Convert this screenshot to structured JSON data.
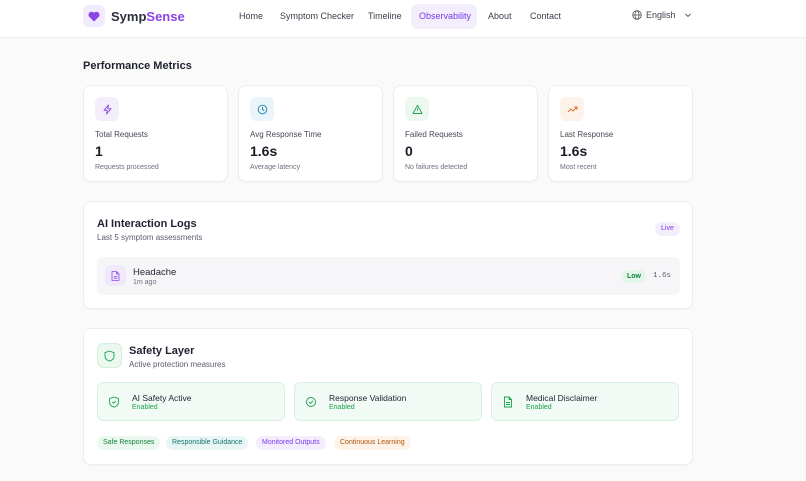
{
  "nav": {
    "brand_left": "Symp",
    "brand_right": "Sense",
    "links": [
      "Home",
      "Symptom Checker",
      "Timeline",
      "Observability",
      "About",
      "Contact"
    ],
    "language": "English"
  },
  "metrics": {
    "title": "Performance Metrics",
    "cards": [
      {
        "label": "Total Requests",
        "value": 1,
        "note": "Requests processed"
      },
      {
        "label": "Avg Response Time",
        "value": "1.6s",
        "note": "Average latency"
      },
      {
        "label": "Failed Requests",
        "value": 0,
        "note": "No failures detected"
      },
      {
        "label": "Last Response",
        "value": "1.6s",
        "note": "Most recent"
      }
    ]
  },
  "logs": {
    "title": "AI Interaction Logs",
    "subtitle": "Last 5 symptom assessments",
    "badge": "Live",
    "entries": [
      {
        "name": "Headache",
        "time": "1m ago",
        "level": "Low",
        "duration": "1.6s"
      }
    ]
  },
  "safety": {
    "title": "Safety Layer",
    "subtitle": "Active protection measures",
    "items": [
      {
        "name": "AI Safety Active",
        "status": "Enabled"
      },
      {
        "name": "Response Validation",
        "status": "Enabled"
      },
      {
        "name": "Medical Disclaimer",
        "status": "Enabled"
      }
    ],
    "tags": [
      "Safe Responses",
      "Responsible Guidance",
      "Monitored Outputs",
      "Continuous Learning"
    ]
  }
}
